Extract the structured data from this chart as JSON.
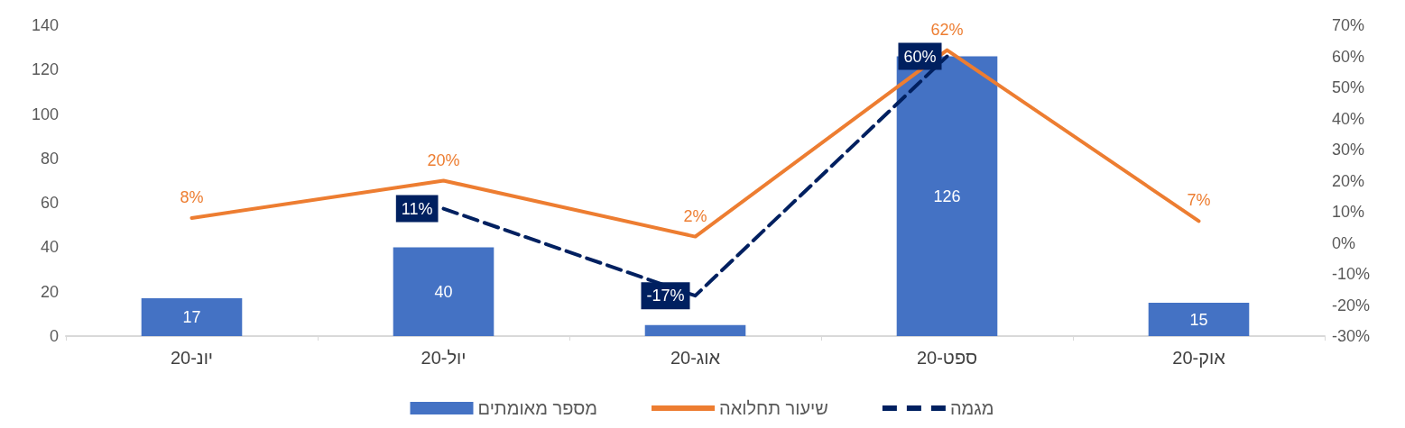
{
  "chart_data": {
    "type": "bar",
    "categories": [
      "יונ-20",
      "יול-20",
      "אוג-20",
      "ספט-20",
      "אוק-20"
    ],
    "series": [
      {
        "name": "מספר מאומתים",
        "color": "#4472c4",
        "values": [
          17,
          40,
          5,
          126,
          15
        ],
        "value_labels": [
          "17",
          "40",
          null,
          "126",
          "15"
        ]
      },
      {
        "name": "שיעור תחלואה",
        "type": "line",
        "axis": "y2",
        "color": "#ed7d31",
        "line_style": "solid",
        "values": [
          8,
          20,
          2,
          62,
          7
        ],
        "value_labels": [
          "8%",
          "20%",
          "2%",
          "62%",
          "7%"
        ]
      },
      {
        "name": "מגמה",
        "type": "line",
        "axis": "y2",
        "color": "#002060",
        "line_style": "dashed",
        "values": [
          null,
          11,
          -17,
          60,
          null
        ],
        "value_labels": [
          null,
          "11%",
          "-17%",
          "60%",
          null
        ]
      }
    ],
    "ylim": [
      0,
      140
    ],
    "yticks": [
      0,
      20,
      40,
      60,
      80,
      100,
      120,
      140
    ],
    "y2lim": [
      -30,
      70
    ],
    "y2ticks": [
      {
        "value": -30,
        "label": "-30%"
      },
      {
        "value": -20,
        "label": "-20%"
      },
      {
        "value": -10,
        "label": "-10%"
      },
      {
        "value": 0,
        "label": "0%"
      },
      {
        "value": 10,
        "label": "10%"
      },
      {
        "value": 20,
        "label": "20%"
      },
      {
        "value": 30,
        "label": "30%"
      },
      {
        "value": 40,
        "label": "40%"
      },
      {
        "value": 50,
        "label": "50%"
      },
      {
        "value": 60,
        "label": "60%"
      },
      {
        "value": 70,
        "label": "70%"
      }
    ],
    "grid": false,
    "legend": "bottom",
    "marker": "none"
  }
}
